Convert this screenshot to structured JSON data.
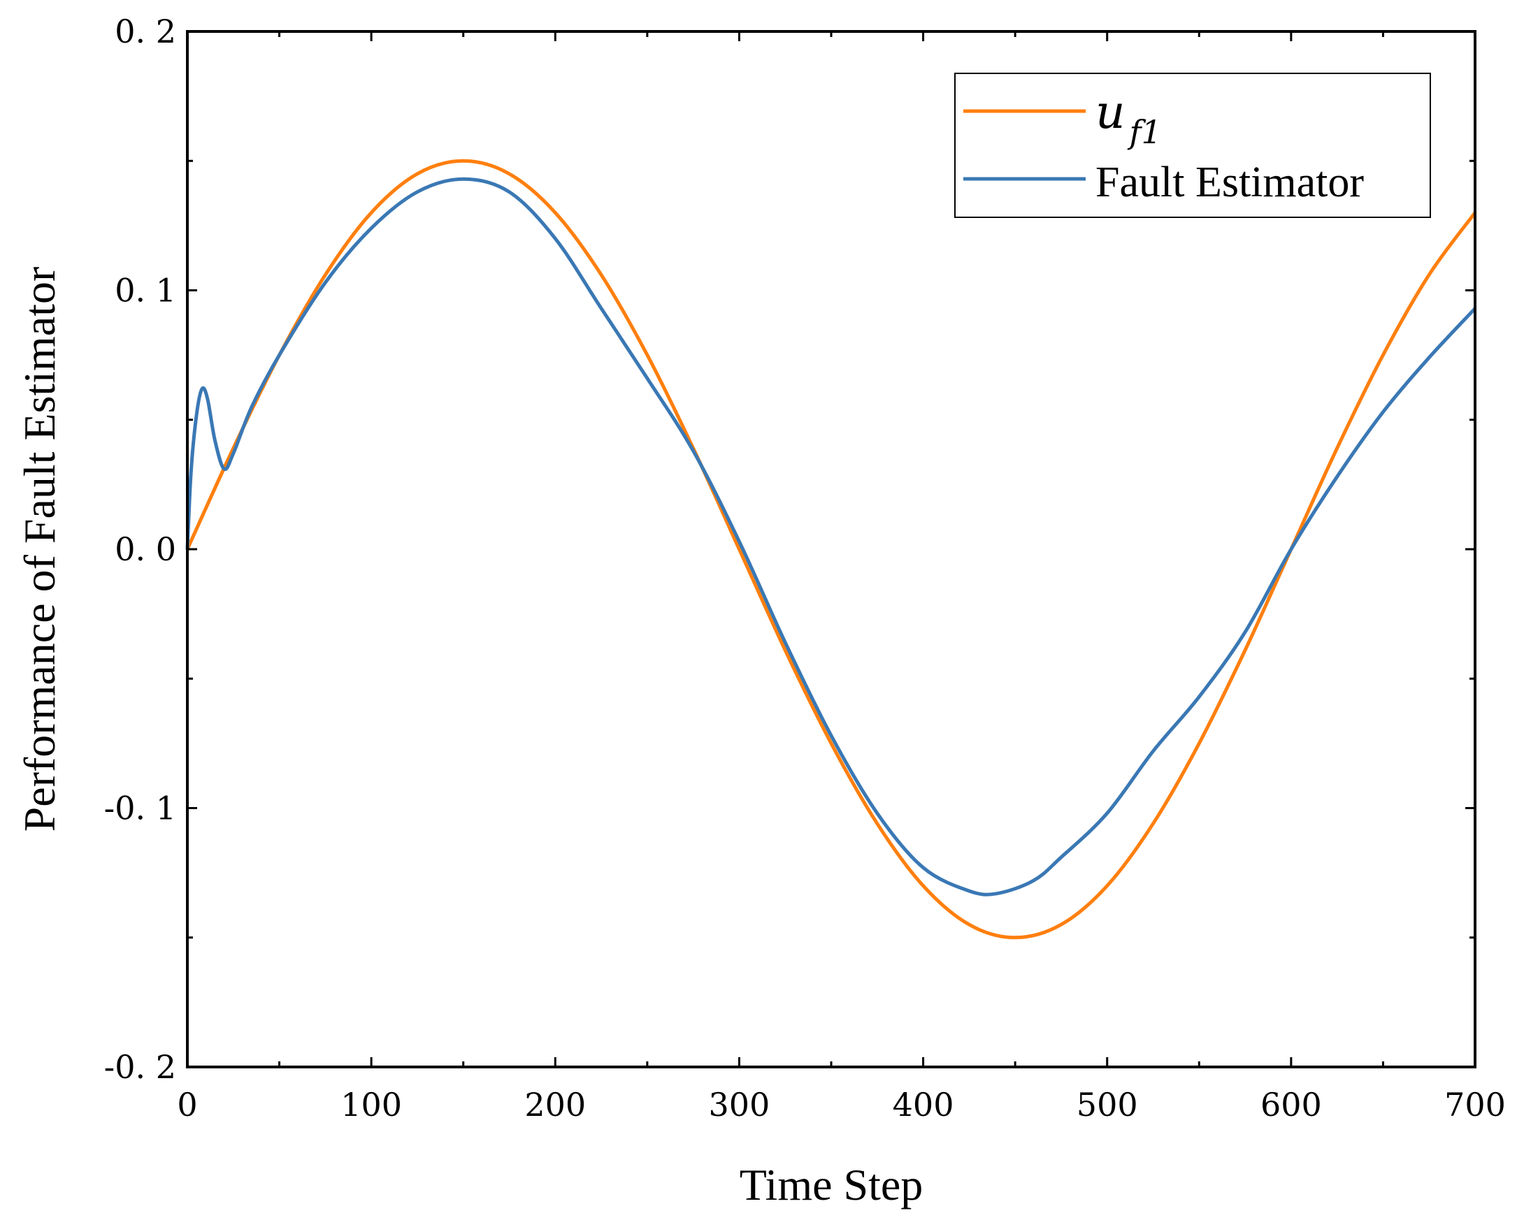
{
  "chart_data": {
    "type": "line",
    "title": "",
    "xlabel": "Time Step",
    "ylabel": "Performance of Fault Estimator",
    "xlim": [
      0,
      700
    ],
    "ylim": [
      -0.2,
      0.2
    ],
    "xticks": [
      0,
      100,
      200,
      300,
      400,
      500,
      600,
      700
    ],
    "xtick_labels": [
      "0",
      "100",
      "200",
      "300",
      "400",
      "500",
      "600",
      "700"
    ],
    "yticks": [
      -0.2,
      -0.1,
      0.0,
      0.1,
      0.2
    ],
    "ytick_labels": [
      "-0. 2",
      "-0. 1",
      "0. 0",
      "0. 1",
      "0. 2"
    ],
    "grid": false,
    "legend_position": "top-right",
    "series": [
      {
        "name": "u_f1",
        "legend_symbol": "u",
        "legend_subscript": "f1",
        "color": "#ff7f0e",
        "x": [
          0,
          25,
          50,
          75,
          100,
          125,
          150,
          175,
          200,
          225,
          250,
          275,
          300,
          325,
          350,
          375,
          400,
          425,
          450,
          475,
          500,
          525,
          550,
          575,
          600,
          625,
          650,
          675,
          700
        ],
        "y": [
          0.0,
          0.039,
          0.075,
          0.106,
          0.13,
          0.145,
          0.15,
          0.145,
          0.13,
          0.106,
          0.075,
          0.039,
          0.0,
          -0.039,
          -0.075,
          -0.106,
          -0.13,
          -0.145,
          -0.15,
          -0.145,
          -0.13,
          -0.106,
          -0.075,
          -0.039,
          0.0,
          0.039,
          0.075,
          0.106,
          0.13
        ]
      },
      {
        "name": "Fault Estimator",
        "color": "#3a78b4",
        "x": [
          0,
          2,
          5,
          8,
          11,
          15,
          20,
          25,
          35,
          50,
          75,
          100,
          125,
          150,
          175,
          200,
          225,
          250,
          275,
          300,
          325,
          350,
          375,
          400,
          425,
          440,
          460,
          475,
          500,
          525,
          550,
          575,
          600,
          625,
          650,
          675,
          700
        ],
        "y": [
          0.0,
          0.03,
          0.052,
          0.062,
          0.058,
          0.042,
          0.031,
          0.037,
          0.055,
          0.075,
          0.103,
          0.124,
          0.138,
          0.143,
          0.138,
          0.12,
          0.093,
          0.066,
          0.038,
          0.003,
          -0.036,
          -0.072,
          -0.102,
          -0.123,
          -0.132,
          -0.133,
          -0.128,
          -0.119,
          -0.102,
          -0.078,
          -0.057,
          -0.032,
          0.0,
          0.028,
          0.053,
          0.074,
          0.093
        ]
      }
    ]
  }
}
